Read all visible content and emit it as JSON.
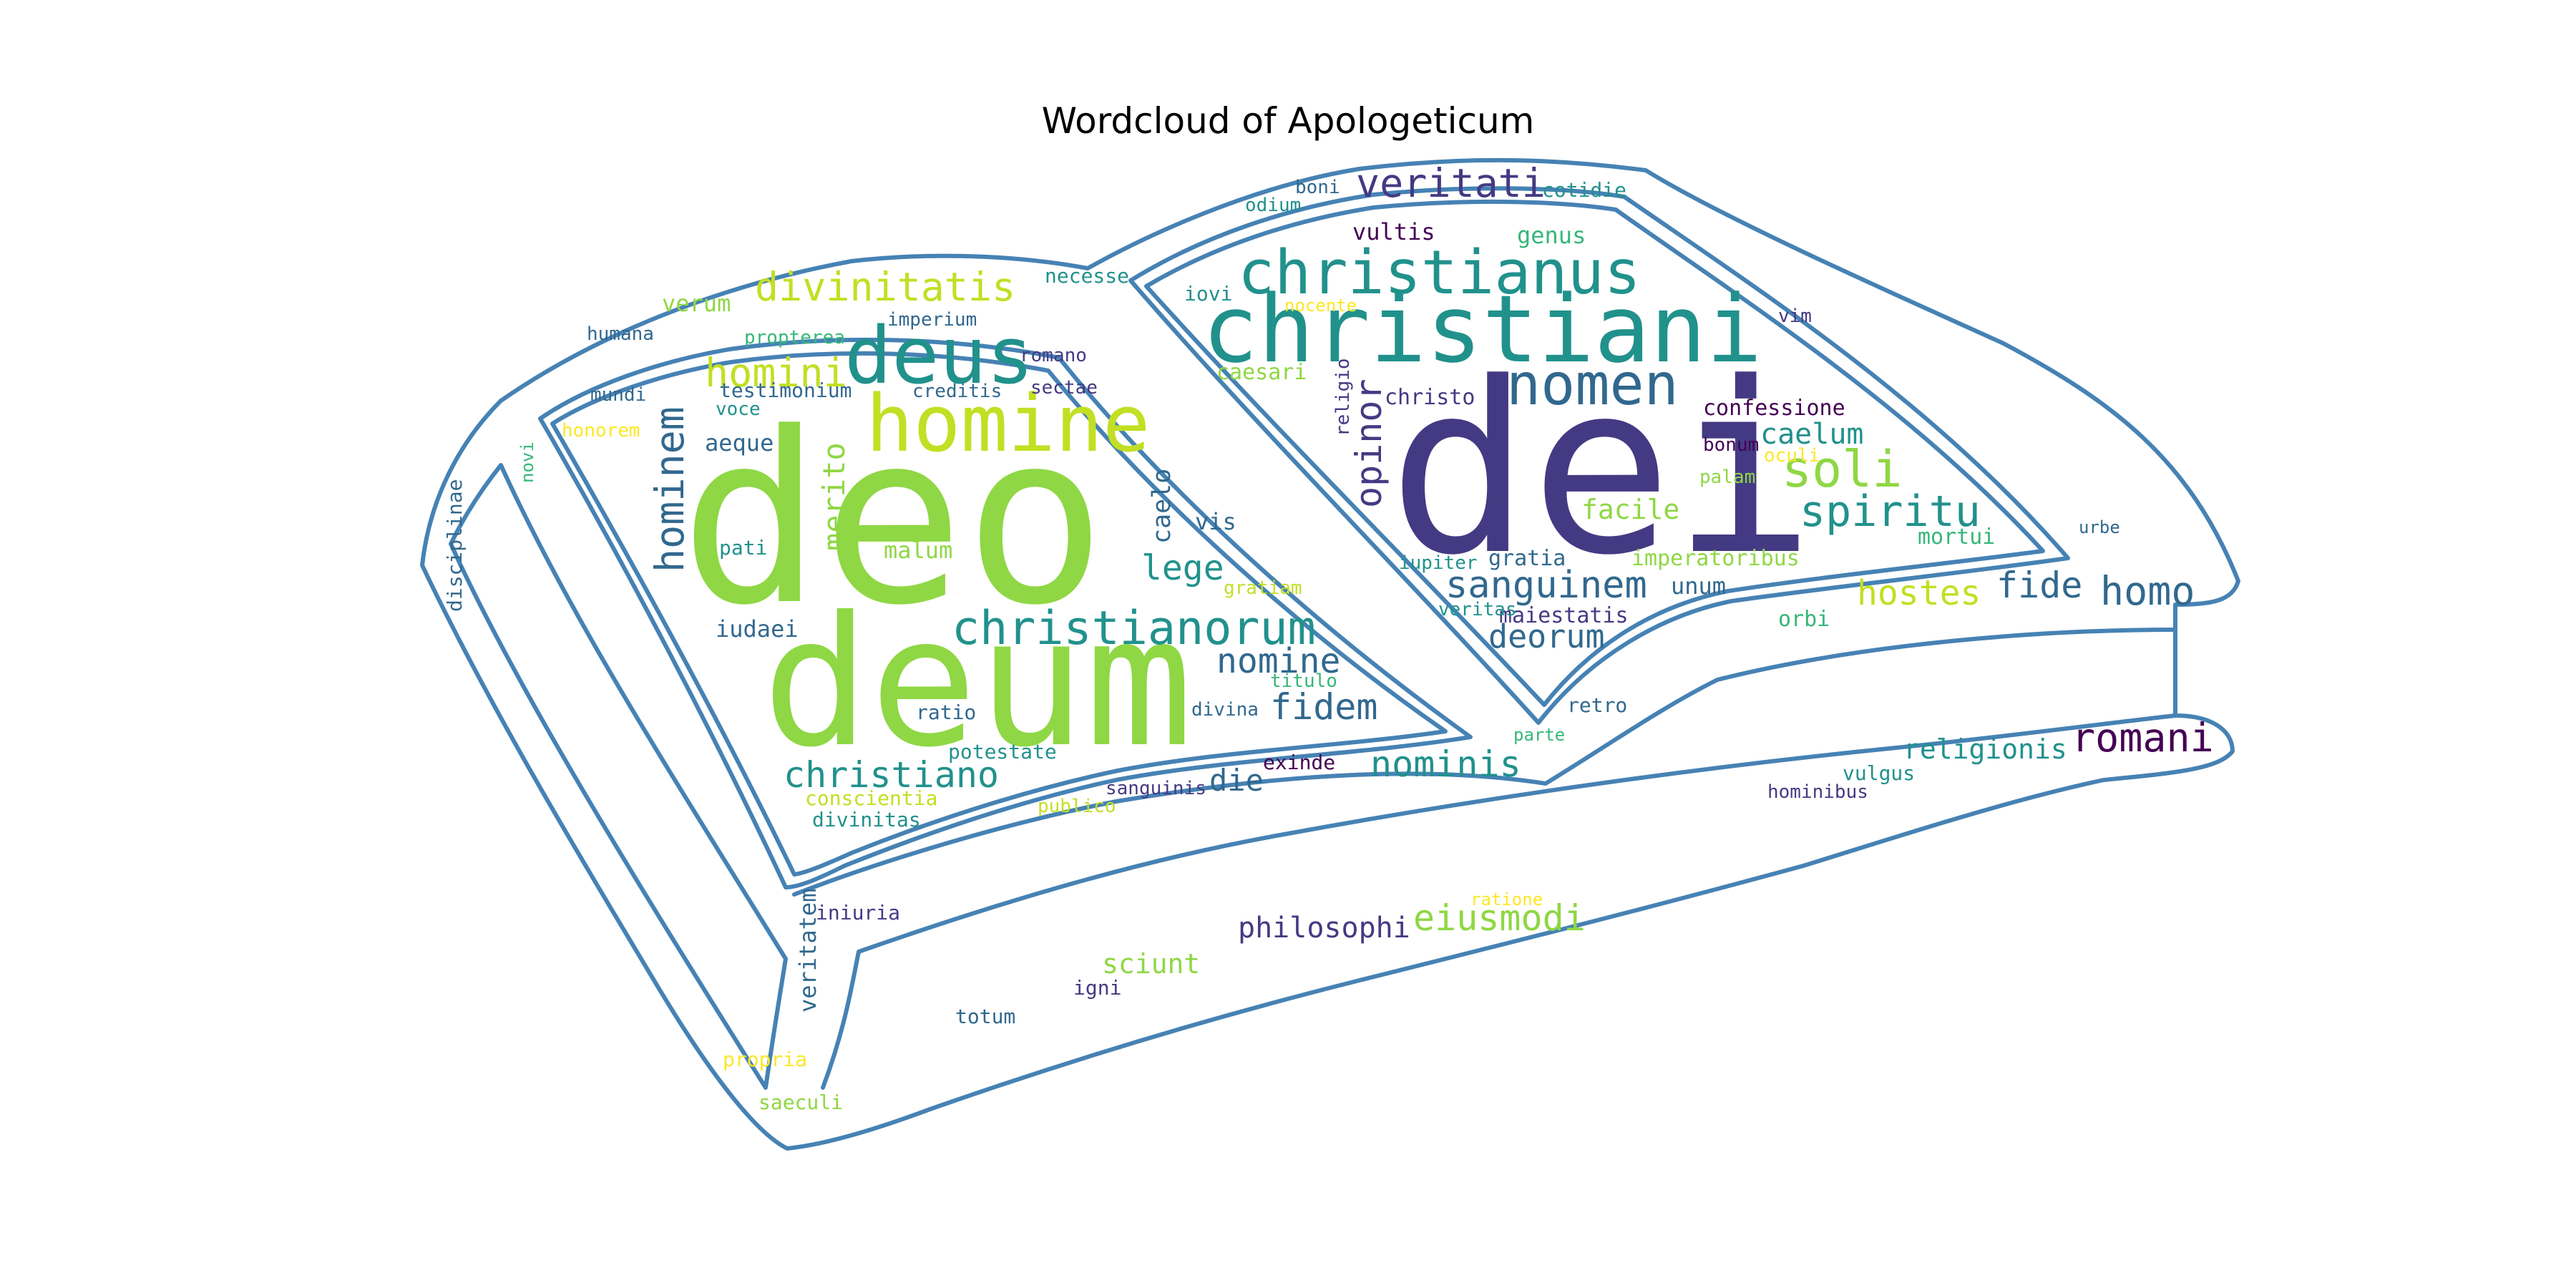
{
  "title": "Wordcloud of Apologeticum",
  "colors": {
    "outline": "#4682b4",
    "palette": {
      "p1": "#440154",
      "p2": "#443a83",
      "p3": "#31688e",
      "p4": "#21918c",
      "p5": "#35b779",
      "p6": "#8fd744",
      "p7": "#c2df23",
      "p8": "#fde725"
    }
  },
  "words": [
    {
      "text": "dei",
      "color": "p2"
    },
    {
      "text": "deo",
      "color": "p6"
    },
    {
      "text": "deum",
      "color": "p6"
    },
    {
      "text": "christiani",
      "color": "p4"
    },
    {
      "text": "homine",
      "color": "p7"
    },
    {
      "text": "deus",
      "color": "p4"
    },
    {
      "text": "christianus",
      "color": "p4"
    },
    {
      "text": "nomen",
      "color": "p3"
    },
    {
      "text": "christianorum",
      "color": "p4"
    },
    {
      "text": "divinitatis",
      "color": "p7"
    },
    {
      "text": "hominem",
      "color": "p3"
    },
    {
      "text": "homini",
      "color": "p7"
    },
    {
      "text": "veritati",
      "color": "p2"
    },
    {
      "text": "soli",
      "color": "p6"
    },
    {
      "text": "spiritu",
      "color": "p4"
    },
    {
      "text": "sanguinem",
      "color": "p3"
    },
    {
      "text": "opinor",
      "color": "p2"
    },
    {
      "text": "homo",
      "color": "p3"
    },
    {
      "text": "romani",
      "color": "p1"
    },
    {
      "text": "nominis",
      "color": "p4"
    },
    {
      "text": "christiano",
      "color": "p4"
    },
    {
      "text": "eiusmodi",
      "color": "p6"
    },
    {
      "text": "fidem",
      "color": "p3"
    },
    {
      "text": "fide",
      "color": "p3"
    },
    {
      "text": "hostes",
      "color": "p7"
    },
    {
      "text": "lege",
      "color": "p4"
    },
    {
      "text": "nomine",
      "color": "p3"
    },
    {
      "text": "deorum",
      "color": "p3"
    },
    {
      "text": "merito",
      "color": "p6"
    },
    {
      "text": "caelum",
      "color": "p4"
    },
    {
      "text": "philosophi",
      "color": "p2"
    },
    {
      "text": "religionis",
      "color": "p4"
    },
    {
      "text": "die",
      "color": "p3"
    },
    {
      "text": "caelo",
      "color": "p3"
    },
    {
      "text": "verum",
      "color": "p6"
    },
    {
      "text": "genus",
      "color": "p5"
    },
    {
      "text": "vultis",
      "color": "p1"
    },
    {
      "text": "facile",
      "color": "p6"
    },
    {
      "text": "sciunt",
      "color": "p6"
    },
    {
      "text": "veritatem",
      "color": "p3"
    },
    {
      "text": "aeque",
      "color": "p3"
    },
    {
      "text": "iudaei",
      "color": "p3"
    },
    {
      "text": "malum",
      "color": "p6"
    },
    {
      "text": "vis",
      "color": "p3"
    },
    {
      "text": "unum",
      "color": "p3"
    },
    {
      "text": "mortui",
      "color": "p5"
    },
    {
      "text": "imperatoribus",
      "color": "p6"
    },
    {
      "text": "maiestatis",
      "color": "p2"
    },
    {
      "text": "orbi",
      "color": "p5"
    },
    {
      "text": "confessione",
      "color": "p1"
    },
    {
      "text": "caesari",
      "color": "p6"
    },
    {
      "text": "christo",
      "color": "p2"
    },
    {
      "text": "religio",
      "color": "p2"
    },
    {
      "text": "iovi",
      "color": "p4"
    },
    {
      "text": "necesse",
      "color": "p4"
    },
    {
      "text": "imperium",
      "color": "p3"
    },
    {
      "text": "propterea",
      "color": "p5"
    },
    {
      "text": "humana",
      "color": "p3"
    },
    {
      "text": "mundi",
      "color": "p3"
    },
    {
      "text": "testimonium",
      "color": "p3"
    },
    {
      "text": "creditis",
      "color": "p3"
    },
    {
      "text": "sectae",
      "color": "p2"
    },
    {
      "text": "romano",
      "color": "p2"
    },
    {
      "text": "voce",
      "color": "p4"
    },
    {
      "text": "honorem",
      "color": "p8"
    },
    {
      "text": "pati",
      "color": "p4"
    },
    {
      "text": "gratiam",
      "color": "p7"
    },
    {
      "text": "ratio",
      "color": "p3"
    },
    {
      "text": "potestate",
      "color": "p4"
    },
    {
      "text": "conscientia",
      "color": "p7"
    },
    {
      "text": "divinitas",
      "color": "p4"
    },
    {
      "text": "publico",
      "color": "p7"
    },
    {
      "text": "sanguinis",
      "color": "p2"
    },
    {
      "text": "exinde",
      "color": "p1"
    },
    {
      "text": "divina",
      "color": "p3"
    },
    {
      "text": "titulo",
      "color": "p5"
    },
    {
      "text": "veritas",
      "color": "p4"
    },
    {
      "text": "iupiter",
      "color": "p4"
    },
    {
      "text": "gratia",
      "color": "p3"
    },
    {
      "text": "parte",
      "color": "p5"
    },
    {
      "text": "retro",
      "color": "p3"
    },
    {
      "text": "bonum",
      "color": "p1"
    },
    {
      "text": "palam",
      "color": "p6"
    },
    {
      "text": "oculi",
      "color": "p8"
    },
    {
      "text": "urbe",
      "color": "p3"
    },
    {
      "text": "vim",
      "color": "p2"
    },
    {
      "text": "cotidie",
      "color": "p4"
    },
    {
      "text": "boni",
      "color": "p3"
    },
    {
      "text": "odium",
      "color": "p4"
    },
    {
      "text": "nocente",
      "color": "p8"
    },
    {
      "text": "vulgus",
      "color": "p4"
    },
    {
      "text": "hominibus",
      "color": "p2"
    },
    {
      "text": "ratione",
      "color": "p8"
    },
    {
      "text": "iniuria",
      "color": "p2"
    },
    {
      "text": "igni",
      "color": "p2"
    },
    {
      "text": "totum",
      "color": "p3"
    },
    {
      "text": "propria",
      "color": "p8"
    },
    {
      "text": "saeculi",
      "color": "p6"
    },
    {
      "text": "novi",
      "color": "p5"
    },
    {
      "text": "disciplinae",
      "color": "p3"
    }
  ]
}
